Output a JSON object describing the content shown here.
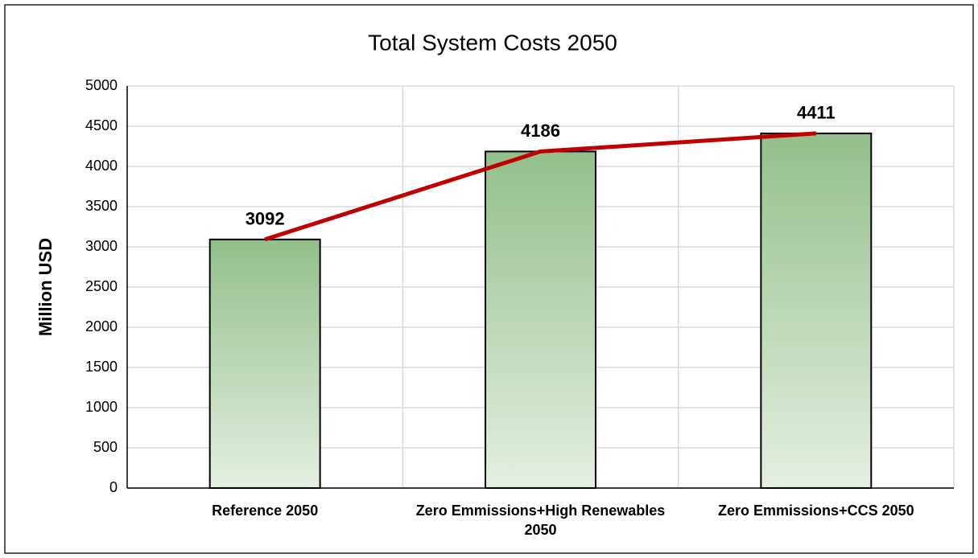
{
  "chart_data": {
    "type": "bar",
    "title": "Total System Costs 2050",
    "y_label": "Million USD",
    "categories": [
      "Reference 2050",
      "Zero Emmissions+High Renewables 2050",
      "Zero Emmissions+CCS 2050"
    ],
    "values": [
      3092,
      4186,
      4411
    ],
    "color": "#93bf8b",
    "color_light": "#e4efe1",
    "line": true,
    "line_color": "#c00000",
    "ylim": [
      0,
      5000
    ],
    "yticks": [
      0,
      500,
      1000,
      1500,
      2000,
      2500,
      3000,
      3500,
      4000,
      4500,
      5000
    ],
    "grid": true
  }
}
